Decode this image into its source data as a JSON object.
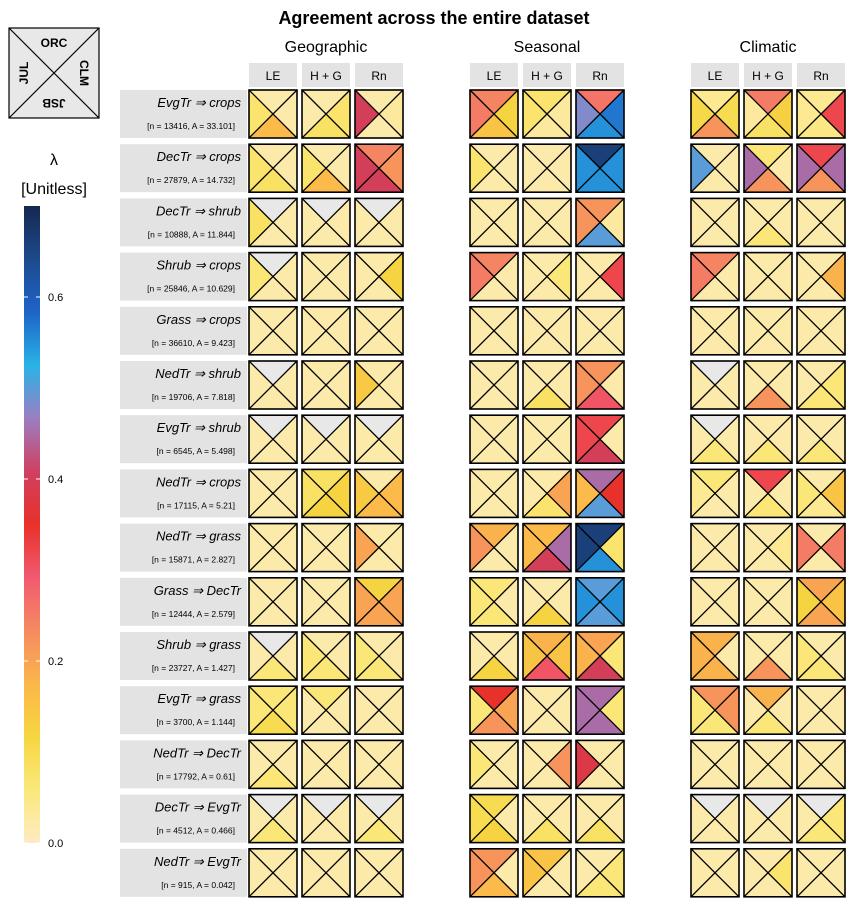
{
  "chart_data": {
    "type": "heatmap",
    "title": "Agreement across the entire dataset",
    "panels": [
      "Geographic",
      "Seasonal",
      "Climatic"
    ],
    "columns": [
      "LE",
      "H + G",
      "Rn"
    ],
    "triangle_key": {
      "top": "ORC",
      "right": "CLM",
      "bottom": "JSB",
      "left": "JUL"
    },
    "colorbar": {
      "symbol": "λ",
      "unit": "[Unitless]",
      "range": [
        0,
        0.7
      ],
      "ticks": [
        {
          "v": 0.0,
          "label": "0.0"
        },
        {
          "v": 0.2,
          "label": "0.2"
        },
        {
          "v": 0.4,
          "label": "0.4"
        },
        {
          "v": 0.6,
          "label": "0.6"
        }
      ],
      "stops": [
        "#fdebc4",
        "#fbe87a",
        "#f6d640",
        "#fbb74a",
        "#f58a60",
        "#f25a6f",
        "#e8312a",
        "#d04060",
        "#9b7ec2",
        "#29b3e6",
        "#1e64c8",
        "#1d4a8c",
        "#152850"
      ]
    },
    "rows": [
      {
        "label": "EvgTr ⇒ crops",
        "sub": "[n = 13416, A = 33.101]"
      },
      {
        "label": "DecTr ⇒ crops",
        "sub": "[n = 27879, A = 14.732]"
      },
      {
        "label": "DecTr ⇒ shrub",
        "sub": "[n = 10888, A = 11.844]"
      },
      {
        "label": "Shrub ⇒ crops",
        "sub": "[n = 25846, A = 10.629]"
      },
      {
        "label": "Grass ⇒ crops",
        "sub": "[n = 36610, A = 9.423]"
      },
      {
        "label": "NedTr ⇒ shrub",
        "sub": "[n = 19706, A = 7.818]"
      },
      {
        "label": "EvgTr ⇒ shrub",
        "sub": "[n = 6545, A = 5.498]"
      },
      {
        "label": "NedTr ⇒ crops",
        "sub": "[n = 17115, A = 5.21]"
      },
      {
        "label": "NedTr ⇒ grass",
        "sub": "[n = 15871, A = 2.827]"
      },
      {
        "label": "Grass ⇒ DecTr",
        "sub": "[n = 12444, A = 2.579]"
      },
      {
        "label": "Shrub ⇒ grass",
        "sub": "[n = 23727, A = 1.427]"
      },
      {
        "label": "EvgTr ⇒ grass",
        "sub": "[n = 3700, A = 1.144]"
      },
      {
        "label": "NedTr ⇒ DecTr",
        "sub": "[n = 17792, A = 0.61]"
      },
      {
        "label": "DecTr ⇒ EvgTr",
        "sub": "[n = 4512, A = 0.466]"
      },
      {
        "label": "NedTr ⇒ EvgTr",
        "sub": "[n = 915, A = 0.042]"
      }
    ],
    "values_order": "each cell lists lambda for [ORC (top), CLM (right), JSB (bottom), JUL (left)]; null = no data",
    "values": [
      [
        [
          [
            0.02,
            0.02,
            0.17,
            0.07
          ],
          [
            0.02,
            0.07,
            0.08,
            0.02
          ],
          [
            0.02,
            0.03,
            0.02,
            0.4
          ]
        ],
        [
          [
            0.24,
            0.12,
            0.15,
            0.25
          ],
          [
            0.07,
            0.03,
            0.03,
            0.07
          ],
          [
            0.26,
            0.57,
            0.55,
            0.48
          ]
        ],
        [
          [
            0.04,
            0.1,
            0.22,
            0.11
          ],
          [
            0.25,
            0.13,
            0.08,
            0.03
          ],
          [
            0.04,
            0.32,
            0.05,
            0.04
          ]
        ]
      ],
      [
        [
          [
            0.02,
            0.02,
            0.08,
            0.07
          ],
          [
            0.02,
            0.02,
            0.17,
            0.07
          ],
          [
            0.24,
            0.22,
            0.4,
            0.4
          ]
        ],
        [
          [
            0.02,
            0.02,
            0.02,
            0.07
          ],
          [
            0.02,
            0.02,
            0.02,
            0.02
          ],
          [
            0.66,
            0.55,
            0.55,
            0.55
          ]
        ],
        [
          [
            0.02,
            0.02,
            0.02,
            0.5
          ],
          [
            0.06,
            0.02,
            0.22,
            0.45
          ],
          [
            0.32,
            0.45,
            0.22,
            0.45
          ]
        ]
      ],
      [
        [
          [
            null,
            0.02,
            0.02,
            0.08
          ],
          [
            null,
            0.02,
            0.02,
            0.02
          ],
          [
            null,
            0.02,
            0.02,
            0.02
          ]
        ],
        [
          [
            0.02,
            0.02,
            0.02,
            0.02
          ],
          [
            0.02,
            0.02,
            0.02,
            0.02
          ],
          [
            0.22,
            0.03,
            0.5,
            0.22
          ]
        ],
        [
          [
            0.02,
            0.02,
            0.02,
            0.02
          ],
          [
            0.02,
            0.02,
            0.06,
            0.02
          ],
          [
            0.02,
            0.02,
            0.02,
            0.02
          ]
        ]
      ],
      [
        [
          [
            null,
            0.02,
            0.02,
            0.06
          ],
          [
            0.02,
            0.02,
            0.02,
            0.02
          ],
          [
            0.02,
            0.12,
            0.02,
            0.02
          ]
        ],
        [
          [
            0.24,
            0.02,
            0.02,
            0.25
          ],
          [
            0.02,
            0.06,
            0.02,
            0.02
          ],
          [
            0.02,
            0.32,
            0.02,
            0.02
          ]
        ],
        [
          [
            0.24,
            0.02,
            0.02,
            0.25
          ],
          [
            0.02,
            0.02,
            0.02,
            0.02
          ],
          [
            0.02,
            0.18,
            0.02,
            0.02
          ]
        ]
      ],
      [
        [
          [
            0.02,
            0.02,
            0.02,
            0.02
          ],
          [
            0.02,
            0.02,
            0.02,
            0.02
          ],
          [
            0.02,
            0.02,
            0.02,
            0.02
          ]
        ],
        [
          [
            0.02,
            0.02,
            0.02,
            0.02
          ],
          [
            0.02,
            0.02,
            0.02,
            0.02
          ],
          [
            0.02,
            0.02,
            0.02,
            0.02
          ]
        ],
        [
          [
            0.02,
            0.02,
            0.02,
            0.02
          ],
          [
            0.02,
            0.02,
            0.02,
            0.02
          ],
          [
            0.02,
            0.02,
            0.02,
            0.02
          ]
        ]
      ],
      [
        [
          [
            null,
            0.02,
            0.02,
            0.02
          ],
          [
            0.02,
            0.02,
            0.02,
            0.02
          ],
          [
            0.02,
            0.02,
            0.02,
            0.14
          ]
        ],
        [
          [
            0.02,
            0.02,
            0.02,
            0.02
          ],
          [
            0.02,
            0.02,
            0.08,
            0.02
          ],
          [
            0.22,
            0.02,
            0.3,
            0.22
          ]
        ],
        [
          [
            null,
            0.02,
            0.02,
            0.02
          ],
          [
            0.02,
            0.02,
            0.22,
            0.02
          ],
          [
            0.02,
            0.06,
            0.06,
            0.02
          ]
        ]
      ],
      [
        [
          [
            null,
            0.02,
            0.02,
            0.02
          ],
          [
            null,
            0.02,
            0.02,
            0.02
          ],
          [
            null,
            0.02,
            0.02,
            0.02
          ]
        ],
        [
          [
            0.02,
            0.02,
            0.02,
            0.02
          ],
          [
            0.02,
            0.02,
            0.02,
            0.02
          ],
          [
            0.32,
            0.02,
            0.4,
            0.32
          ]
        ],
        [
          [
            null,
            0.02,
            0.06,
            0.02
          ],
          [
            0.02,
            0.02,
            0.06,
            0.02
          ],
          [
            0.02,
            0.02,
            0.06,
            0.02
          ]
        ]
      ],
      [
        [
          [
            0.02,
            0.02,
            0.02,
            0.02
          ],
          [
            0.08,
            0.12,
            0.12,
            0.08
          ],
          [
            0.02,
            0.17,
            0.17,
            0.14
          ]
        ],
        [
          [
            0.02,
            0.02,
            0.02,
            0.02
          ],
          [
            0.02,
            0.2,
            0.07,
            0.02
          ],
          [
            0.45,
            0.35,
            0.5,
            0.17
          ]
        ],
        [
          [
            0.06,
            0.02,
            0.02,
            0.04
          ],
          [
            0.32,
            0.02,
            0.06,
            0.02
          ],
          [
            0.02,
            0.15,
            0.04,
            0.06
          ]
        ]
      ],
      [
        [
          [
            0.02,
            0.02,
            0.02,
            0.02
          ],
          [
            0.02,
            0.02,
            0.02,
            0.02
          ],
          [
            0.02,
            0.02,
            0.02,
            0.2
          ]
        ],
        [
          [
            0.18,
            0.02,
            0.02,
            0.22
          ],
          [
            0.17,
            0.45,
            0.4,
            0.17
          ],
          [
            0.66,
            0.07,
            0.55,
            0.66
          ]
        ],
        [
          [
            0.02,
            0.02,
            0.02,
            0.02
          ],
          [
            0.02,
            0.04,
            0.02,
            0.02
          ],
          [
            0.02,
            0.25,
            0.02,
            0.25
          ]
        ]
      ],
      [
        [
          [
            0.02,
            0.02,
            0.02,
            0.02
          ],
          [
            0.02,
            0.02,
            0.02,
            0.02
          ],
          [
            0.12,
            0.2,
            0.2,
            0.2
          ]
        ],
        [
          [
            0.06,
            0.02,
            0.06,
            0.06
          ],
          [
            0.02,
            0.02,
            0.12,
            0.02
          ],
          [
            0.5,
            0.55,
            0.5,
            0.55
          ]
        ],
        [
          [
            0.02,
            0.02,
            0.02,
            0.02
          ],
          [
            0.02,
            0.02,
            0.02,
            0.02
          ],
          [
            0.2,
            0.15,
            0.2,
            0.12
          ]
        ]
      ],
      [
        [
          [
            null,
            0.02,
            0.06,
            0.02
          ],
          [
            0.02,
            0.02,
            0.06,
            0.06
          ],
          [
            0.02,
            0.02,
            0.06,
            0.06
          ]
        ],
        [
          [
            0.02,
            0.02,
            0.12,
            0.02
          ],
          [
            0.18,
            0.15,
            0.3,
            0.15
          ],
          [
            0.2,
            0.06,
            0.4,
            0.18
          ]
        ],
        [
          [
            0.18,
            0.02,
            0.18,
            0.18
          ],
          [
            0.02,
            0.02,
            0.22,
            0.02
          ],
          [
            0.02,
            0.02,
            0.06,
            0.06
          ]
        ]
      ],
      [
        [
          [
            0.06,
            0.06,
            0.1,
            0.06
          ],
          [
            0.06,
            0.02,
            0.02,
            0.02
          ],
          [
            0.02,
            0.02,
            0.02,
            0.02
          ]
        ],
        [
          [
            0.35,
            0.2,
            0.22,
            0.06
          ],
          [
            0.02,
            0.02,
            0.02,
            0.02
          ],
          [
            0.45,
            0.06,
            0.45,
            0.45
          ]
        ],
        [
          [
            0.22,
            0.22,
            0.06,
            0.06
          ],
          [
            0.18,
            0.02,
            0.06,
            0.02
          ],
          [
            0.02,
            0.02,
            0.02,
            0.02
          ]
        ]
      ],
      [
        [
          [
            0.02,
            0.02,
            0.06,
            0.02
          ],
          [
            0.02,
            0.02,
            0.02,
            0.02
          ],
          [
            0.02,
            0.02,
            0.02,
            0.02
          ]
        ],
        [
          [
            0.02,
            0.02,
            0.02,
            0.06
          ],
          [
            0.02,
            0.22,
            0.02,
            0.02
          ],
          [
            0.02,
            0.02,
            0.02,
            0.38
          ]
        ],
        [
          [
            0.02,
            0.02,
            0.02,
            0.02
          ],
          [
            0.02,
            0.02,
            0.02,
            0.02
          ],
          [
            0.02,
            0.02,
            0.02,
            0.02
          ]
        ]
      ],
      [
        [
          [
            null,
            0.02,
            0.06,
            0.02
          ],
          [
            null,
            0.02,
            0.02,
            0.02
          ],
          [
            null,
            0.02,
            0.06,
            0.02
          ]
        ],
        [
          [
            0.1,
            0.02,
            0.12,
            0.1
          ],
          [
            0.02,
            0.02,
            0.08,
            0.02
          ],
          [
            0.02,
            0.02,
            0.08,
            0.02
          ]
        ],
        [
          [
            null,
            0.02,
            0.02,
            0.02
          ],
          [
            null,
            0.02,
            0.02,
            0.02
          ],
          [
            null,
            0.06,
            0.06,
            0.02
          ]
        ]
      ],
      [
        [
          [
            0.02,
            0.02,
            0.02,
            0.02
          ],
          [
            0.02,
            0.02,
            0.02,
            0.02
          ],
          [
            0.02,
            0.02,
            0.02,
            0.02
          ]
        ],
        [
          [
            0.22,
            0.02,
            0.17,
            0.22
          ],
          [
            0.15,
            0.02,
            0.02,
            0.15
          ],
          [
            0.02,
            0.06,
            0.06,
            0.02
          ]
        ],
        [
          [
            0.02,
            0.02,
            0.02,
            0.02
          ],
          [
            0.02,
            0.07,
            0.02,
            0.02
          ],
          [
            0.02,
            0.02,
            0.02,
            0.02
          ]
        ]
      ]
    ],
    "grey_header": "#e3e3e3",
    "no_data_color": "#e8e8e8"
  }
}
